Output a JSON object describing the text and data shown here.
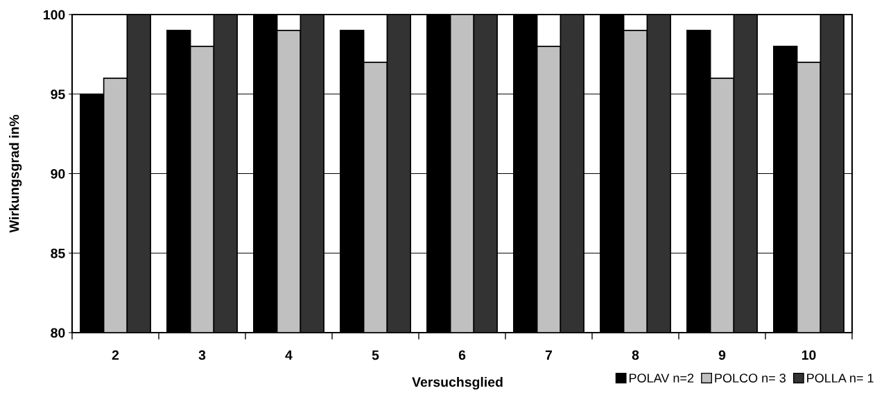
{
  "chart_data": {
    "type": "bar",
    "xlabel": "Versuchsglied",
    "ylabel": "Wirkungsgrad in%",
    "categories": [
      "2",
      "3",
      "4",
      "5",
      "6",
      "7",
      "8",
      "9",
      "10"
    ],
    "series": [
      {
        "name": "POLAV n=2",
        "color": "#000000",
        "values": [
          95,
          99,
          100,
          99,
          100,
          100,
          100,
          99,
          98
        ]
      },
      {
        "name": "POLCO n= 3",
        "color": "#c0c0c0",
        "values": [
          96,
          98,
          99,
          97,
          100,
          98,
          99,
          96,
          97
        ]
      },
      {
        "name": "POLLA n= 1",
        "color": "#333333",
        "values": [
          100,
          100,
          100,
          100,
          100,
          100,
          100,
          100,
          100
        ]
      }
    ],
    "ylim": [
      80,
      100
    ],
    "yticks": [
      80,
      85,
      90,
      95,
      100
    ],
    "grid": "y",
    "legend": "bottom right"
  }
}
